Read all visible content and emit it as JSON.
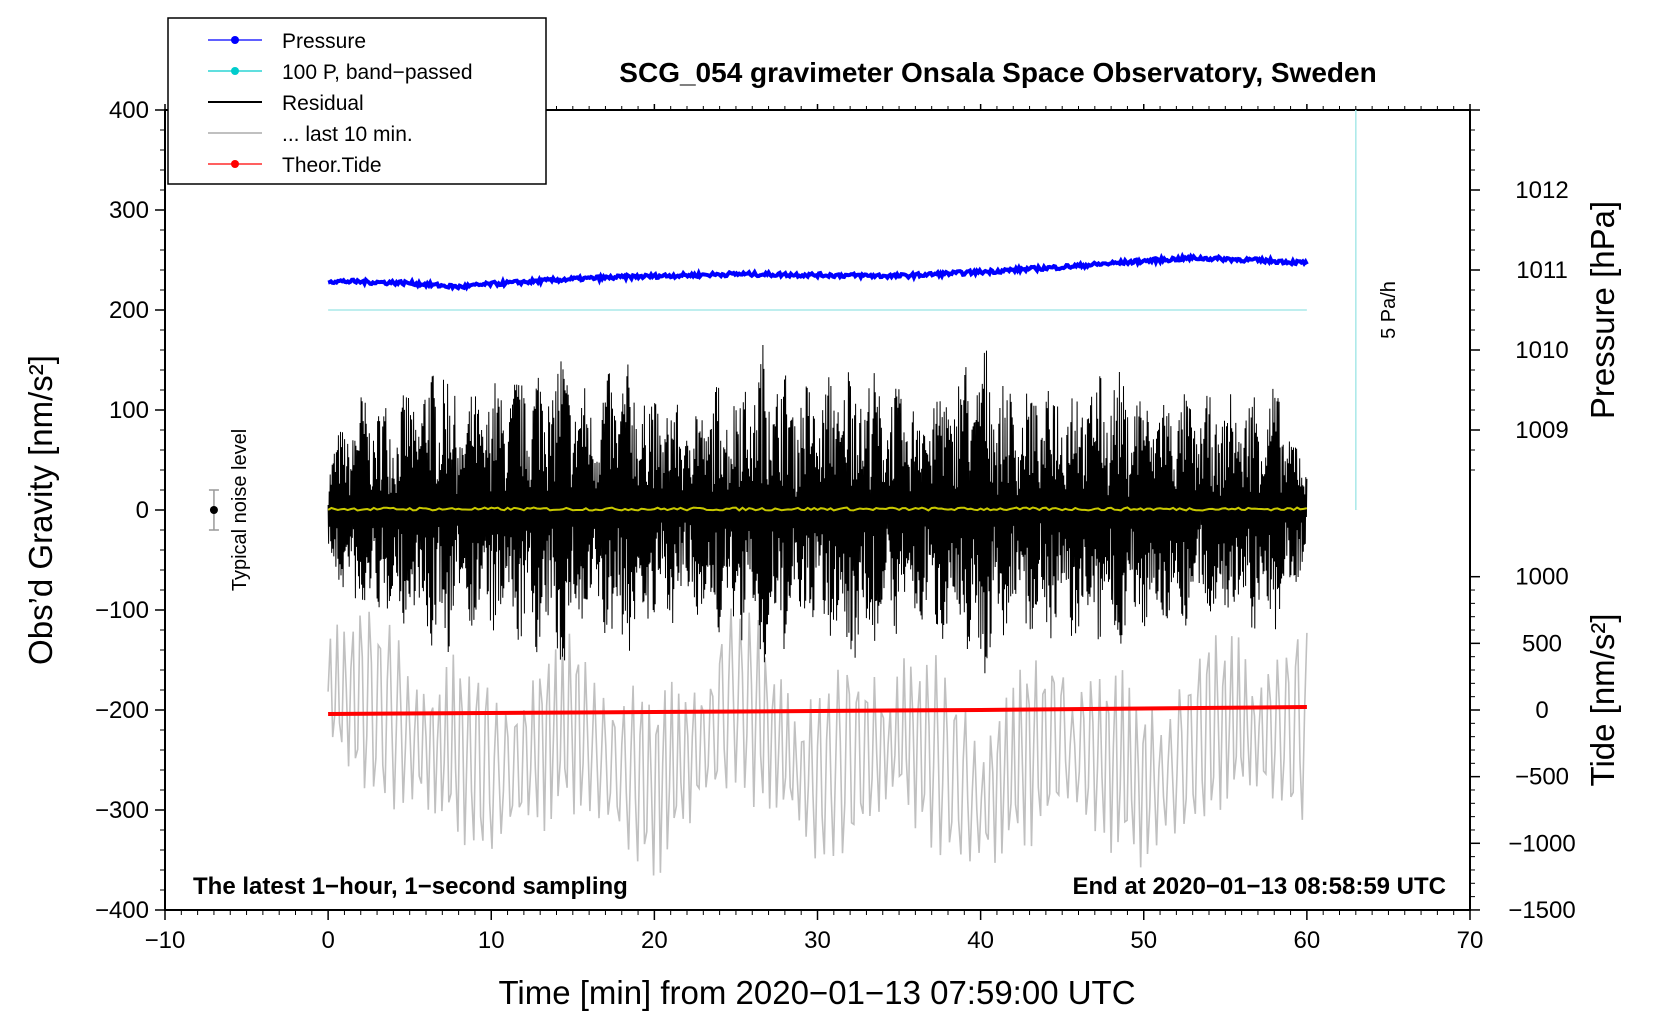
{
  "chart_data": {
    "type": "line",
    "title": "SCG_054 gravimeter Onsala Space Observatory, Sweden",
    "xlabel": "Time [min] from 2020−01−13 07:59:00 UTC",
    "ylabel_left": "Obs’d Gravity [nm/s²]",
    "ylabel_right_pressure": "Pressure [hPa]",
    "ylabel_right_tide": "Tide [nm/s²]",
    "xlim": [
      -10,
      70
    ],
    "ylim": [
      -400,
      400
    ],
    "x_ticks": [
      -10,
      0,
      10,
      20,
      30,
      40,
      50,
      60,
      70
    ],
    "x_tick_labels": [
      "−10",
      "0",
      "10",
      "20",
      "30",
      "40",
      "50",
      "60",
      "70"
    ],
    "y_ticks": [
      -400,
      -300,
      -200,
      -100,
      0,
      100,
      200,
      300,
      400
    ],
    "y_tick_labels": [
      "−400",
      "−300",
      "−200",
      "−100",
      "0",
      "100",
      "200",
      "300",
      "400"
    ],
    "pressure_axis": {
      "ticks_hpa": [
        1009,
        1010,
        1011,
        1012
      ],
      "labels": [
        "1009",
        "1010",
        "1011",
        "1012"
      ],
      "gravity_at_1009": 80,
      "gravity_per_hpa": 80
    },
    "tide_axis": {
      "ticks": [
        -1500,
        -1000,
        -500,
        0,
        500,
        1000
      ],
      "labels": [
        "−1500",
        "−1000",
        "−500",
        "0",
        "500",
        "1000"
      ],
      "gravity_at_0": -200,
      "gravity_per_unit": 0.1333
    },
    "legend": [
      {
        "label": "Pressure",
        "color": "#0000ff",
        "marker": true
      },
      {
        "label": "100 P, band−passed",
        "color": "#00cccc",
        "marker": true
      },
      {
        "label": "Residual",
        "color": "#000000",
        "marker": false
      },
      {
        "label": "... last 10 min.",
        "color": "#c0c0c0",
        "marker": false
      },
      {
        "label": "Theor.Tide",
        "color": "#ff0000",
        "marker": true
      }
    ],
    "series": [
      {
        "name": "Pressure",
        "color": "#0000ff",
        "x": [
          0,
          5,
          8,
          10,
          15,
          20,
          25,
          30,
          35,
          40,
          45,
          50,
          53,
          55,
          58,
          60
        ],
        "y": [
          229,
          227,
          223,
          226,
          231,
          234,
          236,
          235,
          234,
          238,
          243,
          249,
          252,
          251,
          249,
          247
        ]
      },
      {
        "name": "100 P, band-passed",
        "color": "#a8e8e8",
        "x": [
          0,
          60
        ],
        "y": [
          200,
          200
        ]
      },
      {
        "name": "Residual (mean)",
        "color": "#c8c800",
        "x": [
          0,
          60
        ],
        "y": [
          1,
          1
        ]
      },
      {
        "name": "Theor.Tide",
        "color": "#ff0000",
        "x": [
          0,
          20,
          40,
          60
        ],
        "y": [
          -204,
          -202,
          -200,
          -197
        ]
      },
      {
        "name": "Residual envelope",
        "color": "#000000",
        "x": [
          0,
          2,
          4,
          6,
          7,
          8,
          10,
          12,
          14,
          16,
          18,
          20,
          22,
          24,
          26,
          27,
          28,
          30,
          32,
          33,
          34,
          36,
          38,
          40,
          42,
          44,
          46,
          48,
          50,
          52,
          54,
          56,
          58,
          60
        ],
        "y": [
          60,
          120,
          110,
          140,
          170,
          110,
          130,
          140,
          170,
          120,
          155,
          120,
          110,
          130,
          140,
          185,
          140,
          125,
          160,
          150,
          130,
          120,
          135,
          175,
          120,
          130,
          140,
          145,
          125,
          120,
          115,
          120,
          130,
          50
        ]
      },
      {
        "name": "... last 10 min.",
        "color": "#c0c0c0",
        "x": [
          0,
          5,
          10,
          15,
          20,
          25,
          30,
          35,
          40,
          45,
          50,
          55,
          60
        ],
        "y": [
          -200,
          -250,
          -290,
          -245,
          -310,
          -215,
          -300,
          -250,
          -315,
          -250,
          -305,
          -240,
          -250
        ]
      }
    ],
    "error_bar": {
      "x": -7,
      "y": 0,
      "low": -20,
      "high": 20,
      "label": "Typical noise level"
    },
    "pressure_rate": {
      "x": 63,
      "y_top": 400,
      "y_bottom": 0,
      "label": "5 Pa/h"
    },
    "annotations": {
      "bottom_left": "The latest 1−hour, 1−second sampling",
      "bottom_right": "End at 2020−01−13 08:58:59 UTC"
    }
  }
}
